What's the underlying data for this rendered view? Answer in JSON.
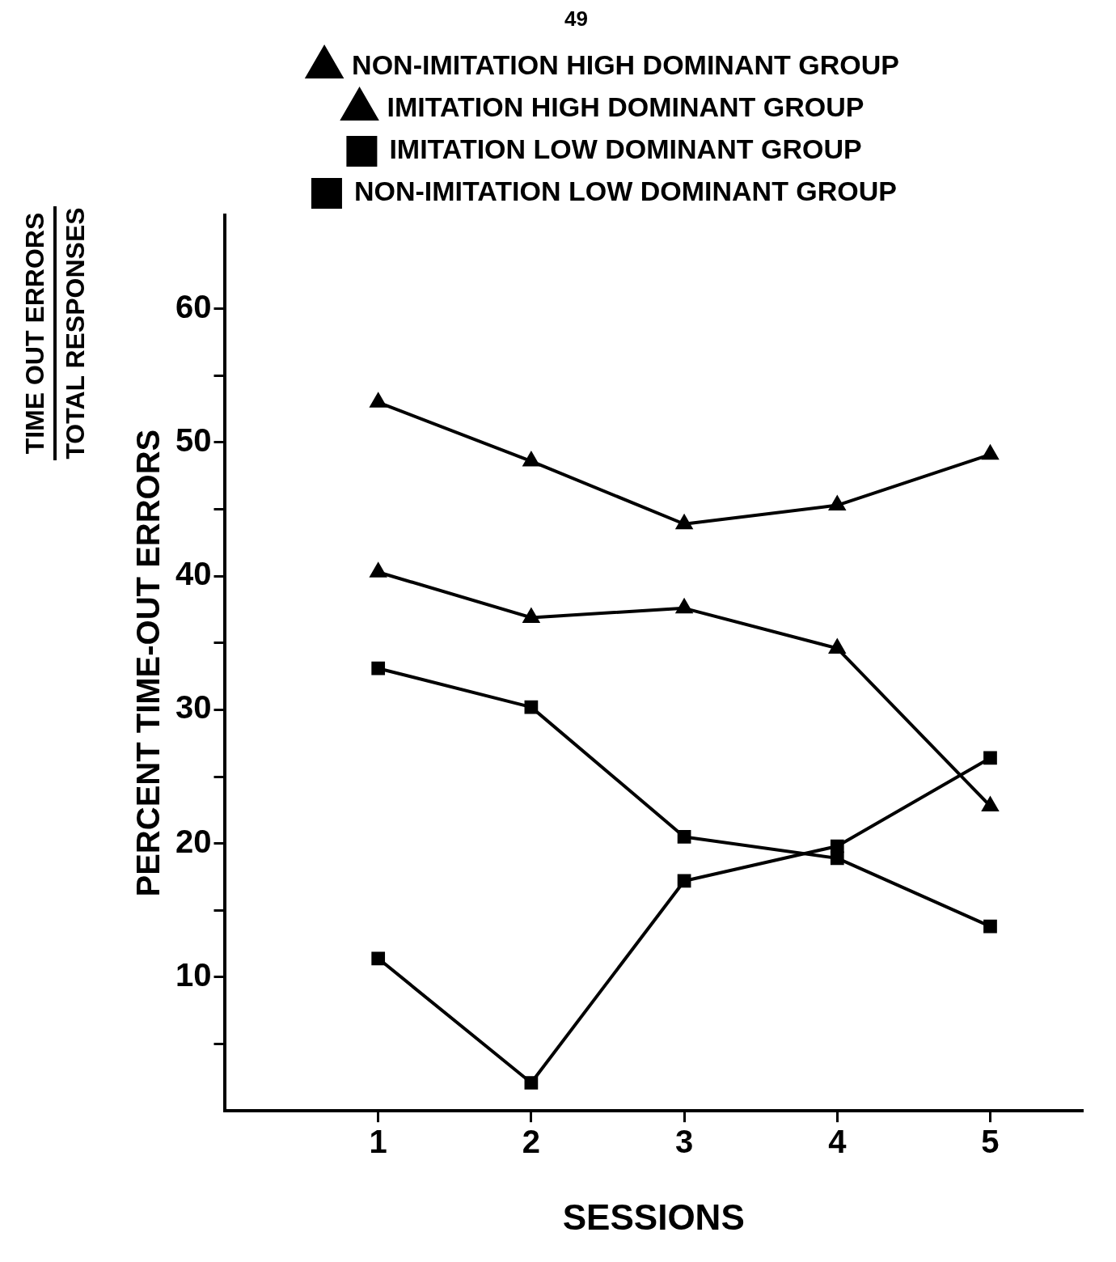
{
  "chart_data": {
    "type": "line",
    "xlabel": "SESSIONS",
    "ylabel": "PERCENT TIME-OUT ERRORS",
    "annotations": [
      "49",
      "TIME OUT ERRORS",
      "TOTAL RESPONSES"
    ],
    "x": [
      1,
      2,
      3,
      4,
      5
    ],
    "xlim": [
      0,
      5.6
    ],
    "xticks": [
      1,
      2,
      3,
      4,
      5
    ],
    "ylim": [
      0,
      67
    ],
    "yticks": [
      {
        "value": 5,
        "label": null
      },
      10,
      {
        "value": 15,
        "label": null
      },
      20,
      {
        "value": 25,
        "label": null
      },
      30,
      {
        "value": 35,
        "label": null
      },
      40,
      {
        "value": 45,
        "label": null
      },
      50,
      {
        "value": 55,
        "label": null
      },
      60
    ],
    "grid": false,
    "legend": "top",
    "line_style": "solid",
    "series": [
      {
        "name": "NON-IMITATION HIGH DOMINANT GROUP",
        "color": "#000000",
        "marker": "triangle",
        "values": [
          53,
          48.6,
          43.9,
          45.3,
          49.1
        ]
      },
      {
        "name": "IMITATION HIGH DOMINANT GROUP",
        "color": "#000000",
        "marker": "triangle",
        "values": [
          40.3,
          36.9,
          37.6,
          34.6,
          22.8
        ]
      },
      {
        "name": "IMITATION LOW DOMINANT GROUP",
        "color": "#000000",
        "marker": "square",
        "values": [
          33.1,
          30.2,
          20.5,
          18.9,
          13.8
        ]
      },
      {
        "name": "NON-IMITATION LOW DOMINANT GROUP",
        "color": "#000000",
        "marker": "square",
        "values": [
          11.4,
          2.1,
          17.2,
          19.8,
          26.4
        ]
      }
    ]
  }
}
